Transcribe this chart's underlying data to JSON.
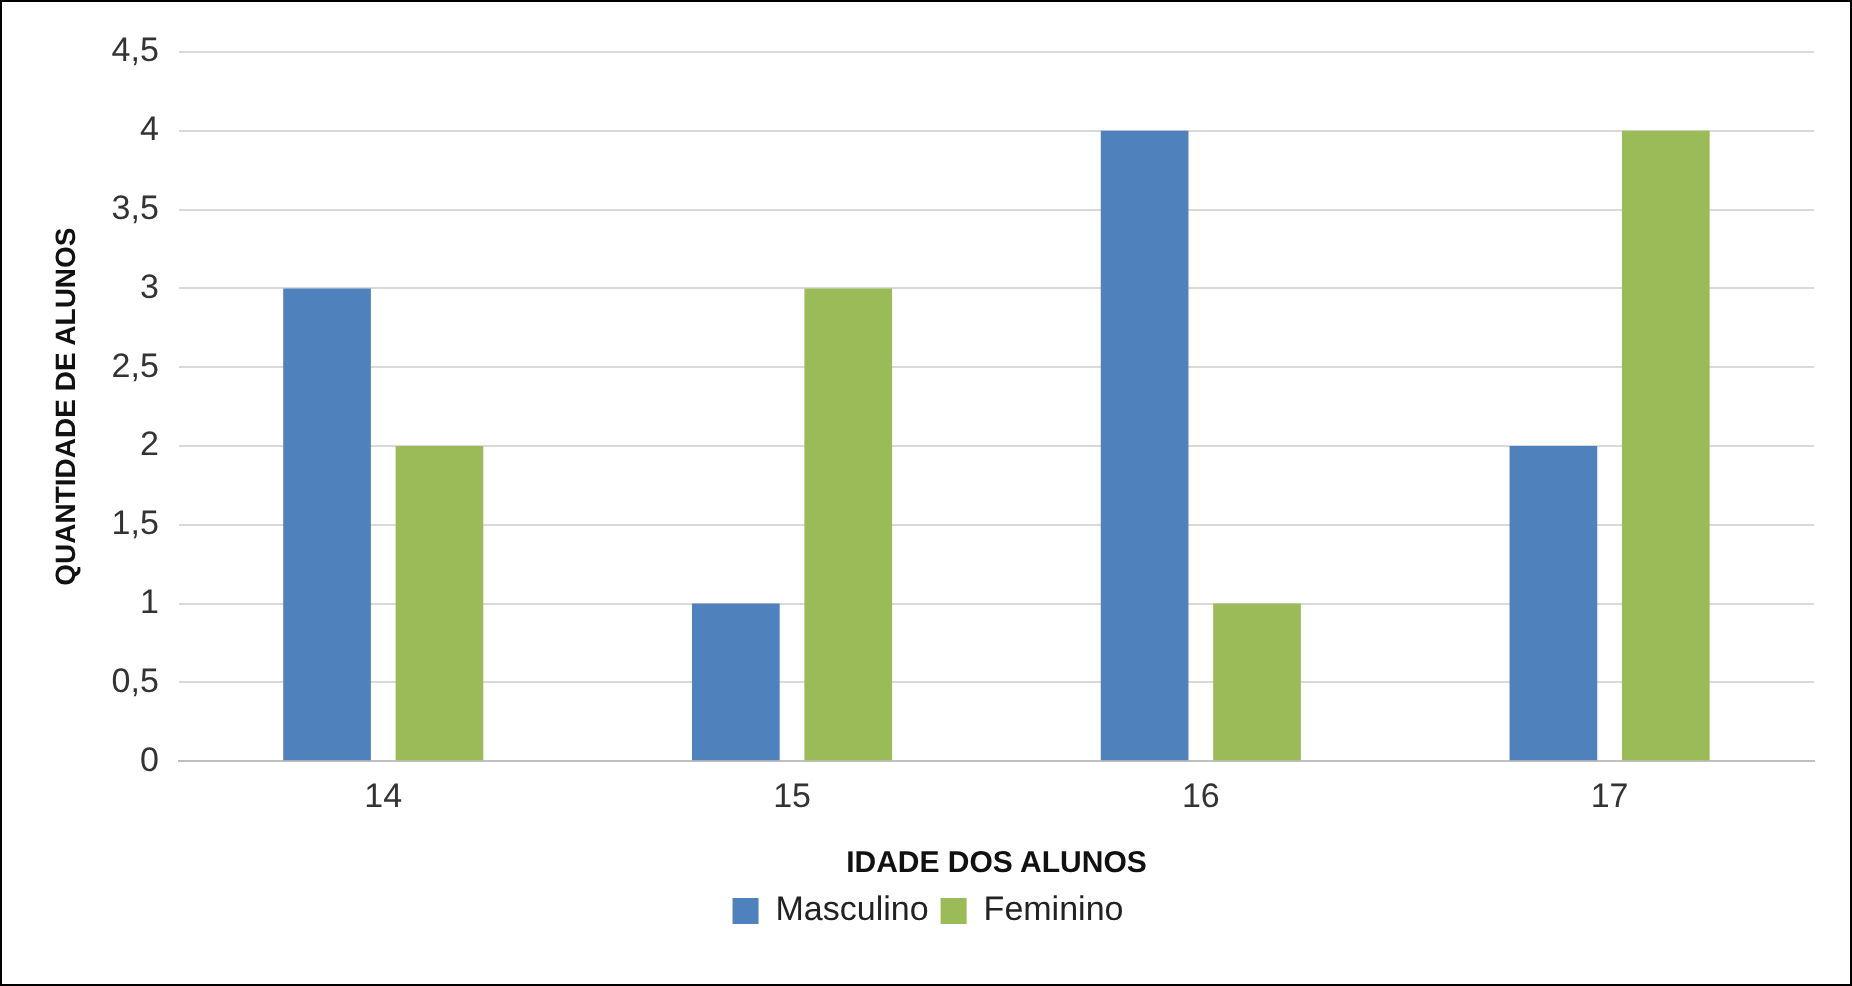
{
  "chart_data": {
    "type": "bar",
    "xlabel": "IDADE DOS ALUNOS",
    "ylabel": "QUANTIDADE DE ALUNOS",
    "categories": [
      "14",
      "15",
      "16",
      "17"
    ],
    "series": [
      {
        "name": "Masculino",
        "color": "#4f81bd",
        "values": [
          3,
          1,
          4,
          2
        ]
      },
      {
        "name": "Feminino",
        "color": "#9bbb59",
        "values": [
          2,
          3,
          1,
          4
        ]
      }
    ],
    "ylim": [
      0,
      4.5
    ],
    "yticks": [
      0,
      {
        "value": 0.5,
        "label": "0,5"
      },
      1,
      {
        "value": 1.5,
        "label": "1,5"
      },
      2,
      {
        "value": 2.5,
        "label": "2,5"
      },
      3,
      {
        "value": 3.5,
        "label": "3,5"
      },
      4,
      {
        "value": 4.5,
        "label": "4,5"
      }
    ],
    "grid": "y",
    "legend": "bottom"
  }
}
